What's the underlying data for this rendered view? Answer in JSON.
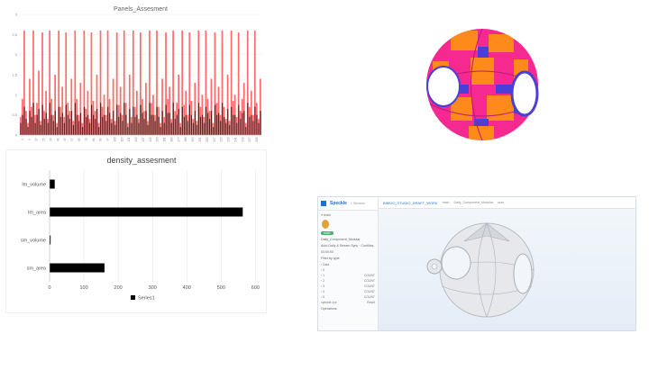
{
  "chart_data": [
    {
      "type": "bar",
      "title": "Panels_Assesment",
      "ylim": [
        0,
        3
      ],
      "yticks": [
        "0",
        "0.5",
        "1",
        "1.5",
        "2",
        "2.5",
        "3"
      ],
      "xtick_labels": [
        "1",
        "9",
        "17",
        "25",
        "33",
        "41",
        "49",
        "57",
        "65",
        "73",
        "81",
        "89",
        "97",
        "105",
        "113",
        "121",
        "129",
        "137",
        "145",
        "153",
        "161",
        "169",
        "177",
        "185",
        "193",
        "201",
        "209",
        "217",
        "225",
        "233",
        "241",
        "249",
        "257",
        "265"
      ],
      "series": [
        {
          "values": [
            0.45,
            0.9,
            2.6,
            0.6,
            0.3,
            1.4,
            0.7,
            2.6,
            0.5,
            0.8,
            1.6,
            0.35,
            2.55,
            0.6,
            1.1,
            0.4,
            2.6,
            0.9,
            0.5,
            1.5,
            0.3,
            2.6,
            0.7,
            1.2,
            0.45,
            2.55,
            0.8,
            0.6,
            1.4,
            0.35,
            2.6,
            0.9,
            0.5,
            1.3,
            0.3,
            2.6,
            0.65,
            1.1,
            0.4,
            2.55,
            0.85,
            0.6,
            1.5,
            0.3,
            2.6,
            0.7,
            1.0,
            0.5,
            2.6,
            0.9,
            0.4,
            1.4,
            0.35,
            2.55,
            0.75,
            1.2,
            0.5,
            2.6,
            0.8,
            0.3,
            1.5,
            0.45,
            2.6,
            0.7,
            1.1,
            0.4,
            2.55,
            0.9,
            0.6,
            1.3,
            0.35,
            2.6,
            0.8,
            1.0,
            0.5,
            2.6,
            0.7,
            0.3,
            1.4,
            0.45,
            2.55,
            0.9,
            1.2,
            0.4,
            2.6,
            0.6,
            0.8,
            1.5,
            0.3,
            2.6,
            0.75,
            1.1,
            0.5,
            2.55,
            0.85,
            0.4,
            1.3,
            0.35,
            2.6,
            0.7,
            1.0,
            0.45,
            2.6,
            0.9,
            0.6,
            1.4,
            0.3,
            2.55,
            0.8,
            1.2,
            0.5,
            2.6,
            0.7,
            0.4,
            1.5,
            0.35,
            2.6,
            0.85,
            1.0,
            0.45,
            2.55,
            0.6,
            0.9,
            1.3,
            0.3,
            2.6,
            0.7,
            1.1,
            0.5,
            2.6,
            0.8,
            0.4,
            1.4
          ]
        },
        {
          "values": [
            0.3,
            0.5,
            0.7,
            0.4,
            0.2,
            0.6,
            0.45,
            0.8,
            0.3,
            0.5,
            0.65,
            0.25,
            0.75,
            0.4,
            0.55,
            0.3,
            0.8,
            0.5,
            0.35,
            0.6,
            0.2,
            0.7,
            0.45,
            0.55,
            0.3,
            0.75,
            0.5,
            0.4,
            0.6,
            0.25,
            0.8,
            0.5,
            0.35,
            0.55,
            0.2,
            0.7,
            0.45,
            0.5,
            0.3,
            0.75,
            0.5,
            0.4,
            0.65,
            0.2,
            0.8,
            0.45,
            0.5,
            0.35,
            0.7,
            0.55,
            0.3,
            0.6,
            0.25,
            0.75,
            0.45,
            0.55,
            0.35,
            0.8,
            0.5,
            0.2,
            0.65,
            0.3,
            0.7,
            0.45,
            0.5,
            0.3,
            0.75,
            0.55,
            0.4,
            0.6,
            0.25,
            0.8,
            0.5,
            0.5,
            0.35,
            0.7,
            0.45,
            0.2,
            0.6,
            0.3,
            0.75,
            0.55,
            0.55,
            0.3,
            0.8,
            0.4,
            0.5,
            0.65,
            0.2,
            0.7,
            0.45,
            0.5,
            0.35,
            0.75,
            0.5,
            0.3,
            0.6,
            0.25,
            0.8,
            0.45,
            0.5,
            0.3,
            0.7,
            0.55,
            0.4,
            0.6,
            0.2,
            0.75,
            0.5,
            0.55,
            0.35,
            0.8,
            0.45,
            0.3,
            0.65,
            0.25,
            0.7,
            0.5,
            0.5,
            0.3,
            0.75,
            0.4,
            0.55,
            0.6,
            0.2,
            0.8,
            0.45,
            0.5,
            0.35,
            0.7,
            0.5,
            0.3,
            0.6
          ]
        }
      ],
      "colors": [
        "#ff6b6b",
        "#5a1e1e"
      ]
    },
    {
      "type": "bar",
      "orientation": "horizontal",
      "title": "density_assesment",
      "categories": [
        "lm_volume",
        "lm_area",
        "sm_volume",
        "sm_area"
      ],
      "series": [
        {
          "name": "Series1",
          "values": [
            15,
            563,
            3,
            160
          ]
        }
      ],
      "xlim": [
        0,
        620
      ],
      "xticks": [
        "0",
        "100",
        "200",
        "300",
        "400",
        "500",
        "600"
      ],
      "legend": "bottom",
      "color": "#000000"
    }
  ],
  "viewer": {
    "sphere_colors": [
      "#f5298f",
      "#ff8a1c",
      "#4a3fd6",
      "#b81a7a"
    ]
  },
  "app": {
    "brand": "Speckle",
    "brand_sub": "1 Streams",
    "stream_label": "main",
    "branch_pill": "main",
    "stream_name": "Daily_Component_Modular",
    "stream_desc": "Auto Daily & Stream Sync · Conflicts",
    "stream_date": "03:00:00",
    "filter_label": "Filter by type",
    "tree_rows": [
      {
        "label": "Data",
        "value": ""
      },
      {
        "label": "0",
        "value": ""
      },
      {
        "label": "1",
        "value": "COUNT"
      },
      {
        "label": "2",
        "value": "COUNT"
      },
      {
        "label": "3",
        "value": "COUNT"
      },
      {
        "label": "4",
        "value": "COUNT"
      },
      {
        "label": "5",
        "value": "COUNT"
      }
    ],
    "footer_left": "speckle.xyz",
    "footer_right": "Reset",
    "footer2": "Operations",
    "crumb_main": "BIMOC_STUDIO_DRAFT_WORK",
    "crumb_branch": "main",
    "crumb_file": "Daily_Component_Modular",
    "crumb_user": "user"
  }
}
